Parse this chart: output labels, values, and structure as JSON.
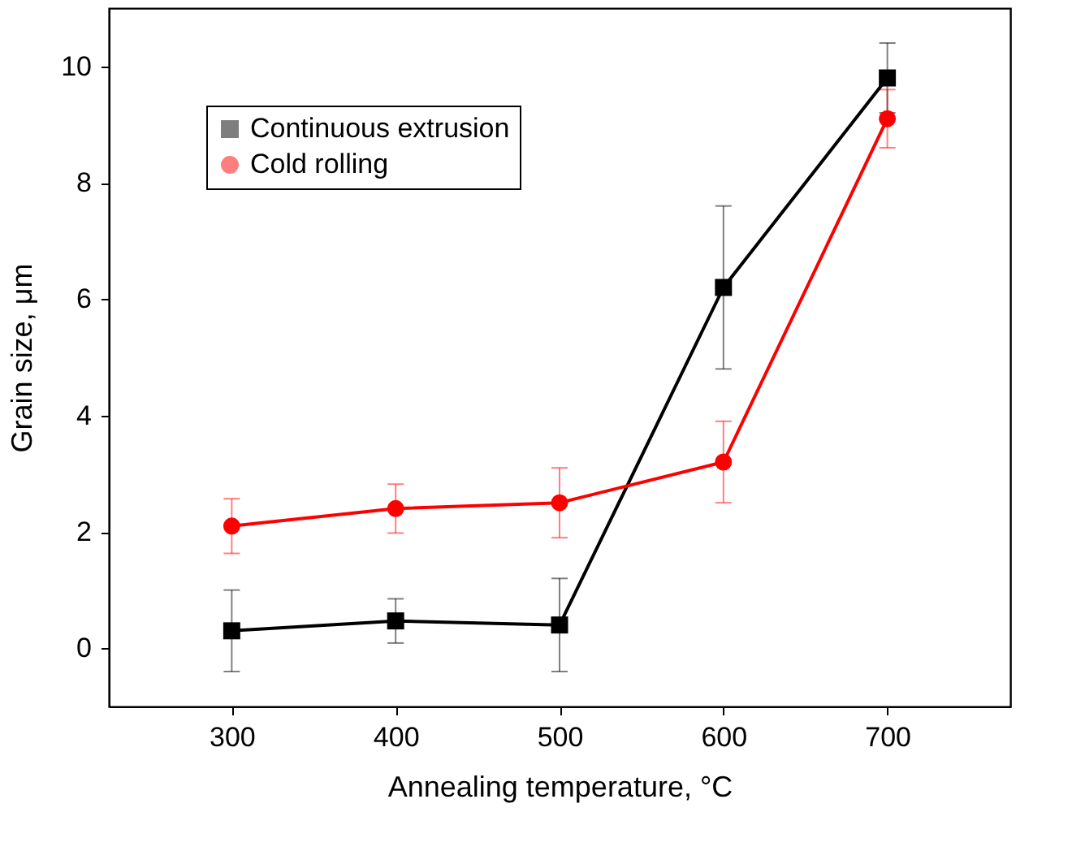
{
  "chart_data": {
    "type": "line",
    "xlabel": "Annealing temperature, °C",
    "ylabel": "Grain size, μm",
    "x": [
      300,
      400,
      500,
      600,
      700
    ],
    "series": [
      {
        "name": "Continuous extrusion",
        "color": "#000000",
        "marker": "square",
        "values": [
          0.3,
          0.47,
          0.4,
          6.2,
          9.8
        ],
        "errors": [
          0.7,
          0.38,
          0.8,
          1.4,
          0.6
        ]
      },
      {
        "name": "Cold rolling",
        "color": "#ff0000",
        "marker": "circle",
        "values": [
          2.1,
          2.4,
          2.5,
          3.2,
          9.1
        ],
        "errors": [
          0.47,
          0.42,
          0.6,
          0.7,
          0.5
        ]
      }
    ],
    "xlim": [
      225,
      775
    ],
    "xticks": [
      300,
      400,
      500,
      600,
      700
    ],
    "ylim": [
      -1,
      11
    ],
    "yticks": [
      0,
      2,
      4,
      6,
      8,
      10
    ],
    "grid": false,
    "legend": "top left",
    "line_style": "solid"
  }
}
